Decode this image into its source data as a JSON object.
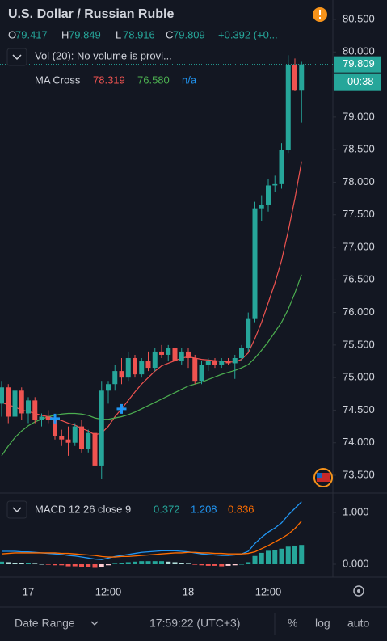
{
  "chart_data": [
    {
      "type": "candlestick",
      "title": "U.S. Dollar / Russian Ruble",
      "ohlc_letters": [
        "O",
        "H",
        "L",
        "C"
      ],
      "change": "+0.392 (+0...",
      "volume_legend": "Vol (20): No volume is provi...",
      "ma_legend": {
        "name": "MA Cross",
        "values": [
          "78.319",
          "76.580",
          "n/a"
        ]
      },
      "countdown": "00:38",
      "up_color": "#26a69a",
      "down_color": "#ef5350",
      "categories": [
        null,
        null,
        null,
        null,
        "17",
        null,
        null,
        null,
        null,
        null,
        null,
        null,
        null,
        null,
        null,
        null,
        "12:00",
        null,
        null,
        null,
        null,
        null,
        null,
        null,
        null,
        null,
        null,
        null,
        "18",
        null,
        null,
        null,
        null,
        null,
        null,
        null,
        null,
        null,
        null,
        null,
        "12:00",
        null,
        null,
        null,
        null,
        null
      ],
      "open": [
        74.6,
        74.85,
        74.4,
        74.8,
        74.45,
        74.65,
        74.35,
        74.4,
        74.35,
        74.1,
        74.05,
        74.0,
        74.25,
        73.9,
        74.15,
        73.65,
        74.8,
        74.9,
        75.1,
        75.0,
        75.3,
        75.05,
        75.25,
        75.15,
        75.4,
        75.35,
        75.45,
        75.25,
        75.4,
        75.3,
        74.95,
        75.2,
        75.25,
        75.2,
        75.25,
        75.22,
        75.3,
        75.45,
        75.9,
        77.6,
        77.65,
        77.95,
        77.97,
        78.5,
        79.8,
        79.417
      ],
      "high": [
        74.95,
        74.9,
        74.85,
        74.85,
        74.7,
        74.7,
        74.45,
        74.5,
        74.4,
        74.2,
        74.25,
        74.3,
        74.35,
        74.2,
        74.2,
        74.95,
        74.95,
        75.2,
        75.3,
        75.4,
        75.35,
        75.3,
        75.4,
        75.45,
        75.5,
        75.5,
        75.5,
        75.45,
        75.45,
        75.35,
        75.25,
        75.3,
        75.3,
        75.3,
        75.3,
        75.35,
        75.5,
        76.0,
        77.7,
        77.8,
        78.05,
        78.1,
        78.6,
        79.95,
        79.9,
        79.849
      ],
      "low": [
        74.4,
        74.3,
        74.3,
        74.35,
        74.3,
        74.3,
        74.25,
        74.3,
        74.05,
        73.95,
        73.8,
        73.95,
        73.85,
        73.85,
        73.6,
        73.45,
        74.6,
        74.8,
        74.9,
        74.95,
        75.0,
        75.0,
        75.1,
        75.1,
        75.3,
        75.25,
        75.2,
        75.2,
        75.15,
        74.9,
        74.9,
        75.1,
        75.15,
        75.15,
        75.2,
        74.98,
        75.25,
        75.4,
        75.85,
        77.4,
        77.55,
        77.85,
        77.9,
        78.45,
        79.4,
        78.916
      ],
      "close": [
        74.85,
        74.4,
        74.8,
        74.45,
        74.65,
        74.35,
        74.4,
        74.35,
        74.1,
        74.05,
        74.0,
        74.25,
        73.9,
        74.15,
        73.65,
        74.8,
        74.9,
        75.1,
        75.0,
        75.3,
        75.05,
        75.25,
        75.15,
        75.4,
        75.35,
        75.45,
        75.25,
        75.4,
        75.3,
        74.95,
        75.2,
        75.25,
        75.2,
        75.25,
        75.22,
        75.3,
        75.45,
        75.9,
        77.6,
        77.65,
        77.95,
        77.97,
        78.5,
        79.8,
        79.417,
        79.809
      ],
      "series": [
        {
          "name": "MA fast",
          "color": "#ef5350",
          "values": [
            74.62,
            74.58,
            74.55,
            74.5,
            74.48,
            74.45,
            74.42,
            74.4,
            74.37,
            74.34,
            74.3,
            74.27,
            74.22,
            74.18,
            74.12,
            74.15,
            74.25,
            74.4,
            74.52,
            74.65,
            74.78,
            74.9,
            75.0,
            75.1,
            75.18,
            75.22,
            75.26,
            75.3,
            75.32,
            75.3,
            75.28,
            75.27,
            75.26,
            75.25,
            75.24,
            75.24,
            75.28,
            75.38,
            75.6,
            75.85,
            76.15,
            76.45,
            76.8,
            77.25,
            77.75,
            78.319
          ]
        },
        {
          "name": "MA slow",
          "color": "#4caf50",
          "values": [
            73.8,
            73.95,
            74.08,
            74.18,
            74.26,
            74.32,
            74.36,
            74.4,
            74.42,
            74.44,
            74.45,
            74.45,
            74.44,
            74.42,
            74.38,
            74.36,
            74.36,
            74.38,
            74.4,
            74.43,
            74.47,
            74.52,
            74.57,
            74.62,
            74.67,
            74.72,
            74.77,
            74.82,
            74.87,
            74.9,
            74.93,
            74.97,
            75.01,
            75.05,
            75.08,
            75.11,
            75.15,
            75.2,
            75.3,
            75.42,
            75.55,
            75.7,
            75.85,
            76.05,
            76.3,
            76.58
          ]
        }
      ],
      "ylim": [
        73.252,
        80.798
      ],
      "yticks": [
        {
          "value": 80.5,
          "label": "80.500"
        },
        {
          "value": 80,
          "label": "80.000"
        },
        {
          "value": 79,
          "label": "79.000"
        },
        {
          "value": 78.5,
          "label": "78.500"
        },
        {
          "value": 78,
          "label": "78.000"
        },
        {
          "value": 77.5,
          "label": "77.500"
        },
        {
          "value": 77,
          "label": "77.000"
        },
        {
          "value": 76.5,
          "label": "76.500"
        },
        {
          "value": 76,
          "label": "76.000"
        },
        {
          "value": 75.5,
          "label": "75.500"
        },
        {
          "value": 75,
          "label": "75.000"
        },
        {
          "value": 74.5,
          "label": "74.500"
        },
        {
          "value": 74,
          "label": "74.000"
        },
        {
          "value": 73.5,
          "label": "73.500"
        }
      ]
    },
    {
      "type": "macd",
      "title": "MACD 12 26 close 9",
      "hist_colors": [
        "#26a69a",
        "#b2dfdb",
        "#ef5350",
        "#ffcdd2"
      ],
      "histogram": [
        0.05,
        0.04,
        0.03,
        0.02,
        0.02,
        0.01,
        0,
        -0.01,
        -0.02,
        -0.02,
        -0.04,
        -0.04,
        -0.05,
        -0.06,
        -0.07,
        -0.06,
        -0.02,
        0.01,
        0.02,
        0.04,
        0.05,
        0.06,
        0.06,
        0.06,
        0.06,
        0.05,
        0.04,
        0.03,
        0.01,
        -0.01,
        -0.02,
        -0.03,
        -0.03,
        -0.04,
        -0.03,
        -0.02,
        0,
        0.04,
        0.16,
        0.22,
        0.26,
        0.27,
        0.3,
        0.34,
        0.36,
        0.372
      ],
      "series": [
        {
          "name": "MACD",
          "color": "#2196f3",
          "values": [
            0.25,
            0.25,
            0.25,
            0.24,
            0.24,
            0.23,
            0.22,
            0.21,
            0.2,
            0.19,
            0.17,
            0.16,
            0.14,
            0.12,
            0.1,
            0.09,
            0.12,
            0.15,
            0.17,
            0.19,
            0.21,
            0.23,
            0.24,
            0.25,
            0.26,
            0.26,
            0.26,
            0.25,
            0.24,
            0.22,
            0.2,
            0.19,
            0.18,
            0.17,
            0.17,
            0.18,
            0.2,
            0.25,
            0.4,
            0.52,
            0.62,
            0.7,
            0.8,
            0.95,
            1.08,
            1.208
          ]
        },
        {
          "name": "Signal",
          "color": "#ff6d00",
          "values": [
            0.2,
            0.21,
            0.22,
            0.22,
            0.22,
            0.22,
            0.22,
            0.22,
            0.22,
            0.21,
            0.21,
            0.2,
            0.19,
            0.18,
            0.17,
            0.15,
            0.14,
            0.14,
            0.15,
            0.15,
            0.16,
            0.17,
            0.18,
            0.19,
            0.2,
            0.21,
            0.22,
            0.22,
            0.23,
            0.23,
            0.22,
            0.22,
            0.21,
            0.21,
            0.2,
            0.2,
            0.2,
            0.21,
            0.24,
            0.3,
            0.36,
            0.43,
            0.5,
            0.58,
            0.69,
            0.836
          ]
        }
      ],
      "ylim": [
        -0.25,
        1.344
      ],
      "yticks": [
        {
          "value": 1,
          "label": "1.000"
        },
        {
          "value": 0,
          "label": "0.000"
        }
      ]
    }
  ],
  "footer": {
    "date_range": "Date Range",
    "time": "17:59:22 (UTC+3)",
    "percent": "%",
    "log": "log",
    "auto": "auto"
  }
}
